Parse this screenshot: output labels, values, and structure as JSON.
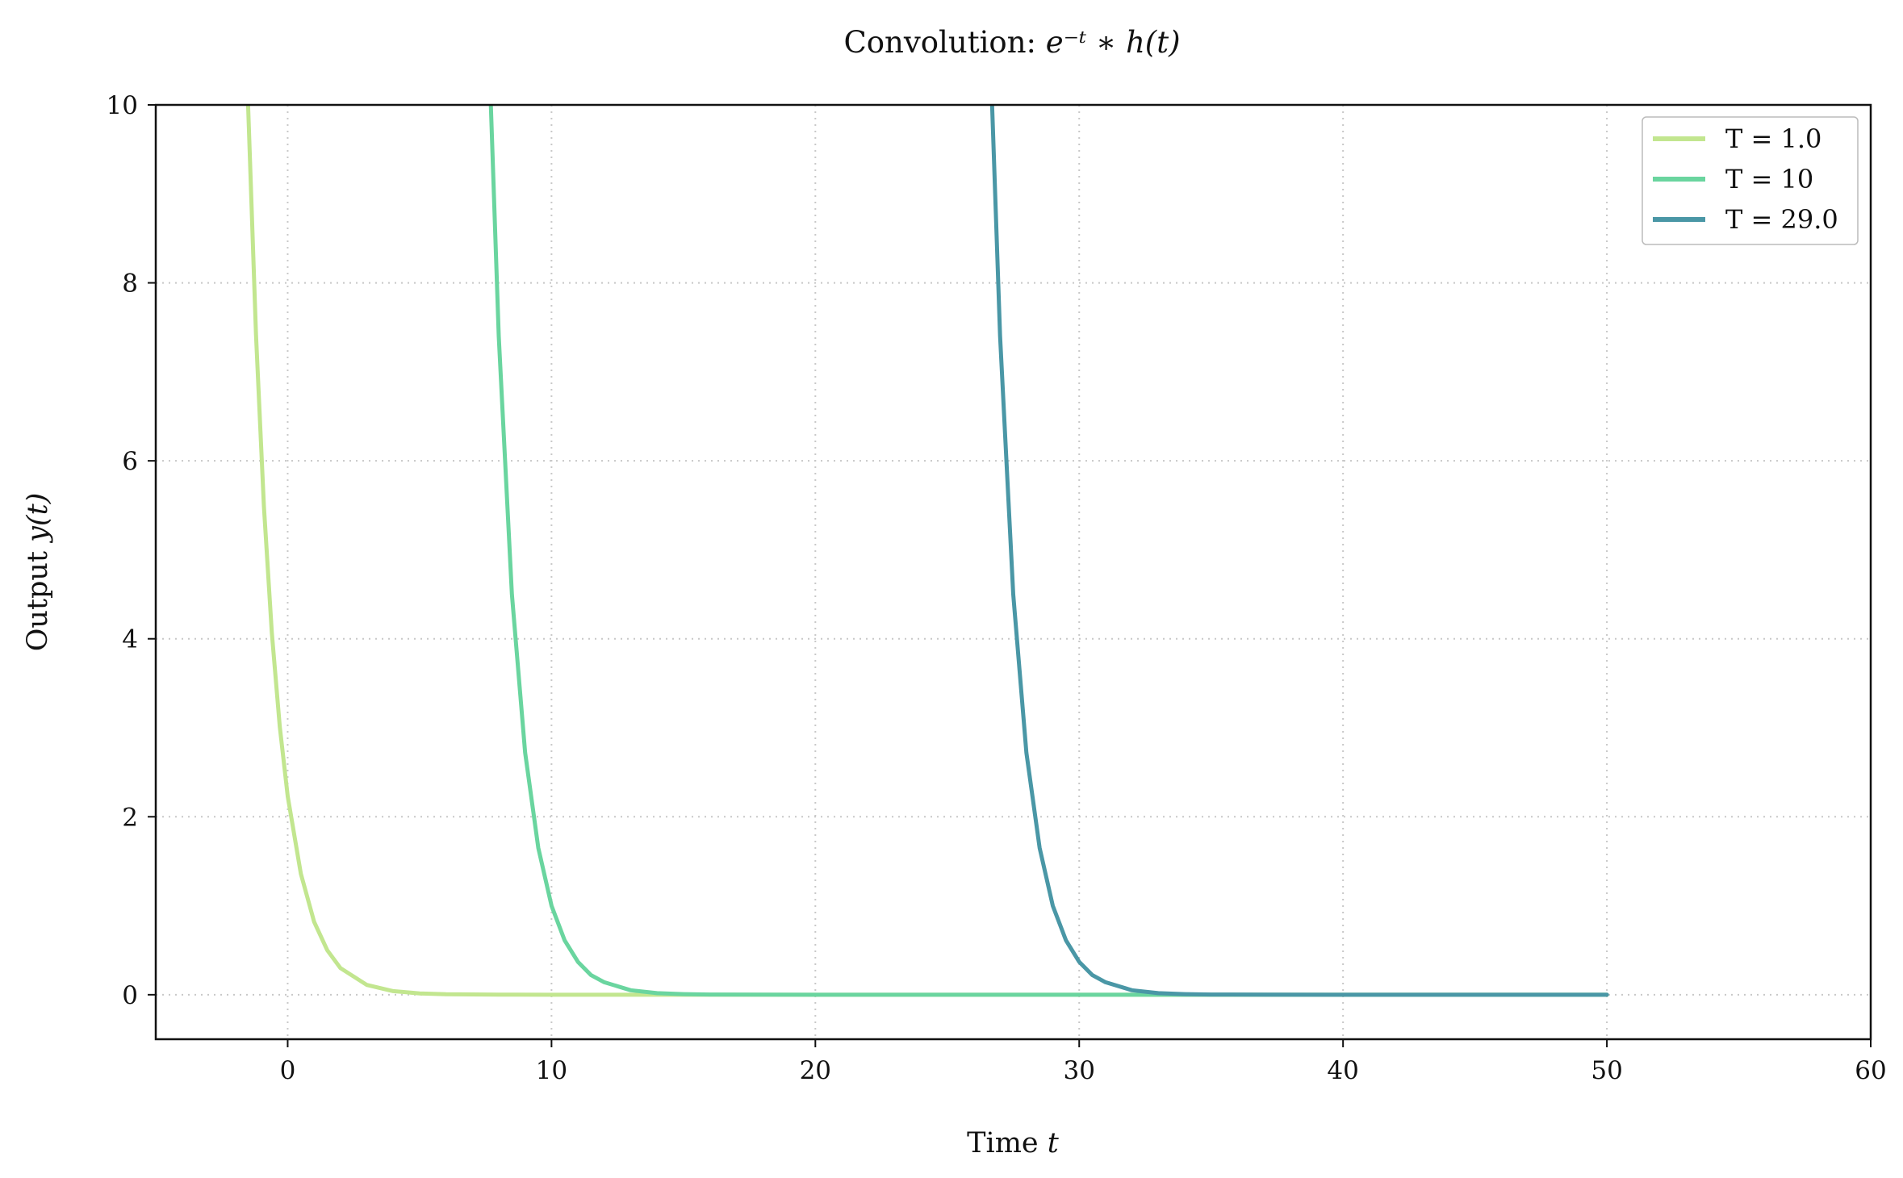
{
  "chart_data": {
    "type": "line",
    "title": {
      "prefix": "Convolution: ",
      "math": "e⁻ᵗ ∗ h(t)"
    },
    "xlabel": {
      "prefix": "Time ",
      "var": "t"
    },
    "ylabel": {
      "prefix": "Output ",
      "var": "y(t)"
    },
    "xlim": [
      -5,
      60
    ],
    "ylim": [
      -0.5,
      10
    ],
    "xticks": [
      0,
      10,
      20,
      30,
      40,
      50,
      60
    ],
    "yticks": [
      0,
      2,
      4,
      6,
      8,
      10
    ],
    "grid": true,
    "grid_style": "dotted",
    "legend_position": "top-right",
    "series": [
      {
        "name": "T = 1.0",
        "color": "#c2e68f",
        "x": [
          -1.5,
          -1.2,
          -0.9,
          -0.6,
          -0.3,
          0,
          0.5,
          1,
          1.5,
          2,
          3,
          4,
          5,
          6,
          8,
          10,
          13,
          16,
          20,
          25,
          30,
          35,
          40,
          45,
          50
        ],
        "y": [
          10.0,
          7.42,
          5.49,
          4.07,
          3.01,
          2.23,
          1.36,
          0.82,
          0.5,
          0.3,
          0.11,
          0.04,
          0.015,
          0.005,
          0.001,
          0,
          0,
          0,
          0,
          0,
          0,
          0,
          0,
          0,
          0
        ]
      },
      {
        "name": "T = 10",
        "color": "#6ad59f",
        "x": [
          7.7,
          8.0,
          8.5,
          9.0,
          9.5,
          10.0,
          10.5,
          11.0,
          11.5,
          12.0,
          13.0,
          14.0,
          15.0,
          16.0,
          18.0,
          20.0,
          25.0,
          30.0,
          35.0,
          40.0,
          45.0,
          50.0
        ],
        "y": [
          10.0,
          7.4,
          4.5,
          2.72,
          1.65,
          1.0,
          0.61,
          0.37,
          0.22,
          0.14,
          0.05,
          0.018,
          0.007,
          0.002,
          0.0003,
          0,
          0,
          0,
          0,
          0,
          0,
          0
        ]
      },
      {
        "name": "T = 29.0",
        "color": "#4a97a6",
        "x": [
          26.7,
          27.0,
          27.5,
          28.0,
          28.5,
          29.0,
          29.5,
          30.0,
          30.5,
          31.0,
          32.0,
          33.0,
          34.0,
          35.0,
          37.0,
          40.0,
          45.0,
          50.0
        ],
        "y": [
          10.0,
          7.4,
          4.5,
          2.72,
          1.65,
          1.0,
          0.61,
          0.37,
          0.22,
          0.14,
          0.05,
          0.018,
          0.007,
          0.002,
          0.0003,
          0,
          0,
          0
        ]
      }
    ]
  }
}
